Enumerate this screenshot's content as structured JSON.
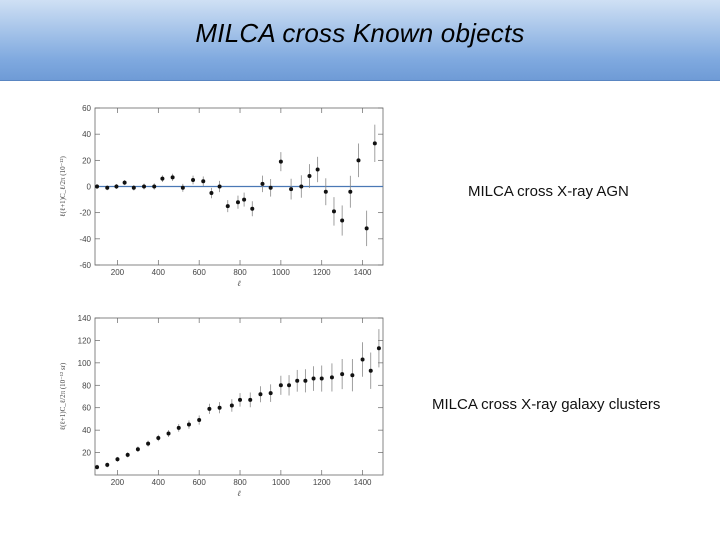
{
  "slide": {
    "title": "MILCA cross Known objects",
    "label_agn": "MILCA cross X-ray AGN",
    "label_clusters": "MILCA cross X-ray galaxy clusters"
  },
  "colors": {
    "title_bar": "#7fa9df",
    "zero_line": "#4a78b5",
    "marker": "#111111"
  },
  "chart_data": [
    {
      "type": "scatter",
      "title": "",
      "xlabel": "ℓ",
      "ylabel": "ℓ(ℓ+1)C_ℓ/2π (10⁻¹²)",
      "xlim": [
        90,
        1500
      ],
      "ylim": [
        -60,
        60
      ],
      "xticks": [
        200,
        400,
        600,
        800,
        1000,
        1200,
        1400
      ],
      "yticks": [
        -60,
        -40,
        -20,
        0,
        20,
        40,
        60
      ],
      "zero_line": true,
      "series": [
        {
          "x": [
            100,
            150,
            195,
            235,
            280,
            330,
            380,
            420,
            470,
            520,
            570,
            620,
            660,
            700,
            740,
            790,
            820,
            860,
            910,
            950,
            1000,
            1050,
            1100,
            1140,
            1180,
            1220,
            1260,
            1300,
            1340,
            1380,
            1420,
            1460
          ],
          "y": [
            0,
            -1,
            0,
            3,
            -1,
            0,
            0,
            6,
            7,
            -1,
            5,
            4,
            -5,
            0,
            -15,
            -12,
            -10,
            -17,
            2,
            -1,
            19,
            -2,
            0,
            8,
            13,
            -4,
            -19,
            -26,
            -4,
            20,
            -32,
            33
          ]
        }
      ]
    },
    {
      "type": "scatter",
      "title": "",
      "xlabel": "ℓ",
      "ylabel": "ℓ(ℓ+1)C_ℓ/2π (10⁻¹² sr)",
      "xlim": [
        90,
        1500
      ],
      "ylim": [
        0,
        140
      ],
      "xticks": [
        200,
        400,
        600,
        800,
        1000,
        1200,
        1400
      ],
      "yticks": [
        20,
        40,
        60,
        80,
        100,
        120,
        140
      ],
      "zero_line": false,
      "series": [
        {
          "x": [
            100,
            150,
            200,
            250,
            300,
            350,
            400,
            450,
            500,
            550,
            600,
            650,
            700,
            760,
            800,
            850,
            900,
            950,
            1000,
            1040,
            1080,
            1120,
            1160,
            1200,
            1250,
            1300,
            1350,
            1400,
            1440,
            1480
          ],
          "y": [
            7,
            9,
            14,
            18,
            23,
            28,
            33,
            37,
            42,
            45,
            49,
            59,
            60,
            62,
            67,
            67,
            72,
            73,
            80,
            80,
            84,
            84,
            86,
            86,
            87,
            90,
            89,
            103,
            93,
            113
          ]
        }
      ]
    }
  ]
}
